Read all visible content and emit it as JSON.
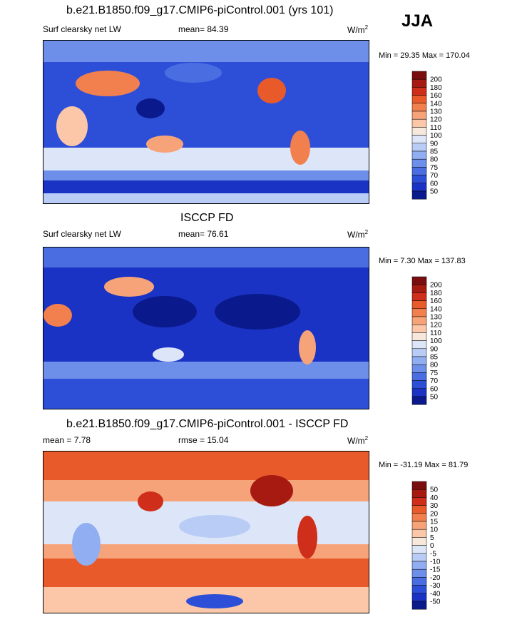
{
  "season": "JJA",
  "units": "W/m",
  "units_sup": "2",
  "panels": [
    {
      "title": "b.e21.B1850.f09_g17.CMIP6-piControl.001 (yrs 101)",
      "variable": "Surf clearsky net LW",
      "stat1": "mean=  84.39",
      "stat2": "",
      "minmax": "Min =  29.35 Max = 170.04"
    },
    {
      "title": "ISCCP FD",
      "variable": "Surf clearsky net LW",
      "stat1": "mean=  76.61",
      "stat2": "",
      "minmax": "Min =   7.30 Max = 137.83"
    },
    {
      "title": "b.e21.B1850.f09_g17.CMIP6-piControl.001 - ISCCP FD",
      "variable": "",
      "stat1": "mean =   7.78",
      "stat2": "rmse =  15.04",
      "minmax": "Min = -31.19 Max =  81.79"
    }
  ],
  "chart_data": [
    {
      "type": "heatmap",
      "title": "b.e21.B1850.f09_g17.CMIP6-piControl.001 (yrs 101)",
      "variable": "Surf clearsky net LW",
      "units": "W/m2",
      "mean": 84.39,
      "min": 29.35,
      "max": 170.04,
      "colorbar_levels": [
        "200",
        "180",
        "160",
        "140",
        "130",
        "120",
        "110",
        "100",
        "90",
        "85",
        "80",
        "75",
        "70",
        "60",
        "50"
      ],
      "colorbar_colors": [
        "#7a0e0e",
        "#a71a12",
        "#cf2e1a",
        "#e85a2a",
        "#f2804e",
        "#f7a37a",
        "#fbc7a8",
        "#f8e8dc",
        "#dde6f8",
        "#b9ccf6",
        "#92aef2",
        "#6d8ee9",
        "#4a6ee1",
        "#2d4fd8",
        "#1b33c4",
        "#0a1a8c"
      ]
    },
    {
      "type": "heatmap",
      "title": "ISCCP FD",
      "variable": "Surf clearsky net LW",
      "units": "W/m2",
      "mean": 76.61,
      "min": 7.3,
      "max": 137.83,
      "colorbar_levels": [
        "200",
        "180",
        "160",
        "140",
        "130",
        "120",
        "110",
        "100",
        "90",
        "85",
        "80",
        "75",
        "70",
        "60",
        "50"
      ],
      "colorbar_colors": [
        "#7a0e0e",
        "#a71a12",
        "#cf2e1a",
        "#e85a2a",
        "#f2804e",
        "#f7a37a",
        "#fbc7a8",
        "#f8e8dc",
        "#dde6f8",
        "#b9ccf6",
        "#92aef2",
        "#6d8ee9",
        "#4a6ee1",
        "#2d4fd8",
        "#1b33c4",
        "#0a1a8c"
      ]
    },
    {
      "type": "heatmap",
      "title": "b.e21.B1850.f09_g17.CMIP6-piControl.001 - ISCCP FD",
      "variable": "",
      "units": "W/m2",
      "mean": 7.78,
      "rmse": 15.04,
      "min": -31.19,
      "max": 81.79,
      "colorbar_levels": [
        "50",
        "40",
        "30",
        "20",
        "15",
        "10",
        "5",
        "0",
        "-5",
        "-10",
        "-15",
        "-20",
        "-30",
        "-40",
        "-50"
      ],
      "colorbar_colors": [
        "#7a0e0e",
        "#a71a12",
        "#cf2e1a",
        "#e85a2a",
        "#f2804e",
        "#f7a37a",
        "#fbc7a8",
        "#f8e8dc",
        "#dde6f8",
        "#b9ccf6",
        "#92aef2",
        "#6d8ee9",
        "#4a6ee1",
        "#2d4fd8",
        "#1b33c4",
        "#0a1a8c"
      ]
    }
  ]
}
